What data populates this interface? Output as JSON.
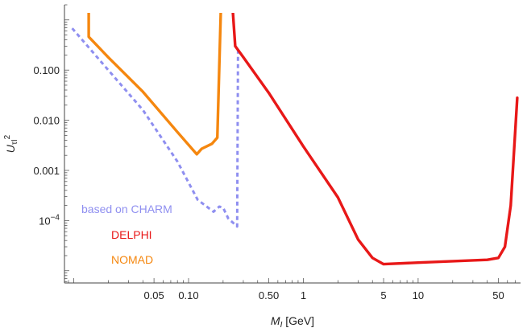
{
  "chart_data": {
    "type": "line",
    "xlabel": {
      "symbol": "M",
      "subscript": "I",
      "unit": " [GeV]"
    },
    "ylabel": {
      "symbol": "U",
      "subscript": "τI",
      "superscript": "2"
    },
    "x_scale": "log",
    "y_scale": "log",
    "xlim": [
      0.0083,
      78
    ],
    "ylim": [
      5.7e-06,
      2.0
    ],
    "x_ticks": [
      {
        "value": 0.05,
        "label": "0.05"
      },
      {
        "value": 0.1,
        "label": "0.10"
      },
      {
        "value": 0.5,
        "label": "0.50"
      },
      {
        "value": 1,
        "label": "1"
      },
      {
        "value": 5,
        "label": "5"
      },
      {
        "value": 10,
        "label": "10"
      },
      {
        "value": 50,
        "label": "50"
      }
    ],
    "y_ticks": [
      {
        "value": 0.0001,
        "label": "10",
        "sup": "−4"
      },
      {
        "value": 0.001,
        "label": "0.001"
      },
      {
        "value": 0.01,
        "label": "0.010"
      },
      {
        "value": 0.1,
        "label": "0.100"
      }
    ],
    "grid": false,
    "legend_position": "lower-left",
    "series": [
      {
        "name": "based on CHARM",
        "color": "#8f8ff0",
        "dash": true,
        "points": [
          [
            0.0097,
            0.68
          ],
          [
            0.02,
            0.1
          ],
          [
            0.04,
            0.016
          ],
          [
            0.08,
            0.0015
          ],
          [
            0.12,
            0.00026
          ],
          [
            0.165,
            0.00015
          ],
          [
            0.185,
            0.00019
          ],
          [
            0.2,
            0.00018
          ],
          [
            0.222,
            0.00011
          ],
          [
            0.265,
            7.64e-05
          ],
          [
            0.27,
            0.27
          ],
          [
            0.275,
            0.27
          ]
        ]
      },
      {
        "name": "DELPHI",
        "color": "#e81818",
        "dash": false,
        "points": [
          [
            0.24,
            2.2
          ],
          [
            0.255,
            0.3
          ],
          [
            0.3,
            0.18
          ],
          [
            0.5,
            0.035
          ],
          [
            1.0,
            0.003
          ],
          [
            2.0,
            0.00029
          ],
          [
            3.0,
            4.2e-05
          ],
          [
            4.0,
            1.8e-05
          ],
          [
            5.0,
            1.35e-05
          ],
          [
            10,
            1.45e-05
          ],
          [
            20,
            1.55e-05
          ],
          [
            40,
            1.65e-05
          ],
          [
            50,
            1.8e-05
          ],
          [
            57,
            3e-05
          ],
          [
            64,
            0.0002
          ],
          [
            73,
            0.028
          ]
        ]
      },
      {
        "name": "NOMAD",
        "color": "#f5870f",
        "dash": false,
        "points": [
          [
            0.0135,
            2.2
          ],
          [
            0.0135,
            0.46
          ],
          [
            0.02,
            0.18
          ],
          [
            0.04,
            0.037
          ],
          [
            0.08,
            0.0058
          ],
          [
            0.118,
            0.0021
          ],
          [
            0.13,
            0.0027
          ],
          [
            0.16,
            0.0034
          ],
          [
            0.178,
            0.0045
          ],
          [
            0.192,
            2.2
          ]
        ]
      }
    ]
  }
}
